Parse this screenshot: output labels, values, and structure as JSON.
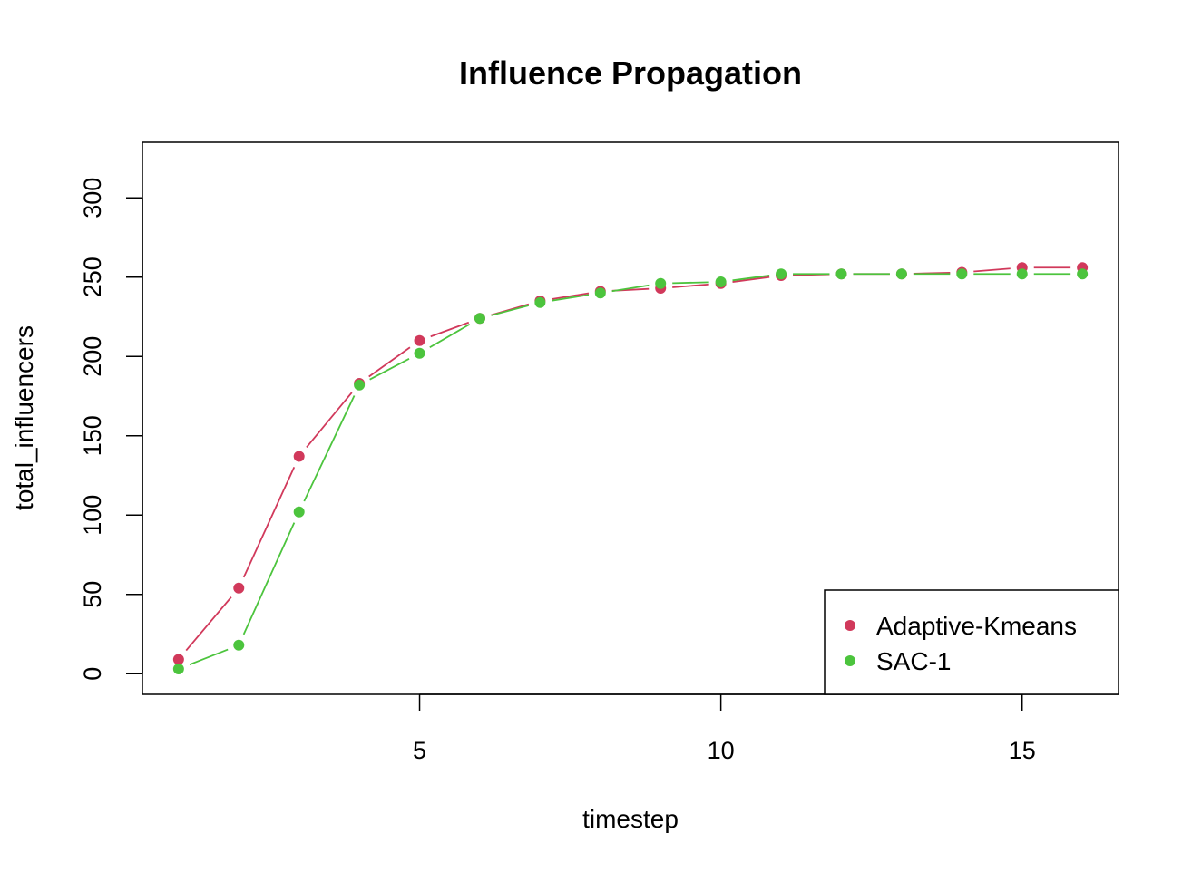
{
  "chart_data": {
    "type": "line",
    "title": "Influence Propagation",
    "xlabel": "timestep",
    "ylabel": "total_influencers",
    "xlim": [
      0.4,
      16.6
    ],
    "ylim": [
      -13,
      335
    ],
    "xticks": [
      5,
      10,
      15
    ],
    "yticks": [
      0,
      50,
      100,
      150,
      200,
      250,
      300
    ],
    "x": [
      1,
      2,
      3,
      4,
      5,
      6,
      7,
      8,
      9,
      10,
      11,
      12,
      13,
      14,
      15,
      16
    ],
    "series": [
      {
        "name": "Adaptive-Kmeans",
        "color": "#D1395B",
        "values": [
          9,
          54,
          137,
          183,
          210,
          224,
          235,
          241,
          243,
          246,
          251,
          252,
          252,
          253,
          256,
          256
        ]
      },
      {
        "name": "SAC-1",
        "color": "#4CC43D",
        "values": [
          3,
          18,
          102,
          182,
          202,
          224,
          234,
          240,
          246,
          247,
          252,
          252,
          252,
          252,
          252,
          252
        ]
      }
    ],
    "grid": false,
    "legend_position": "bottom-right"
  }
}
